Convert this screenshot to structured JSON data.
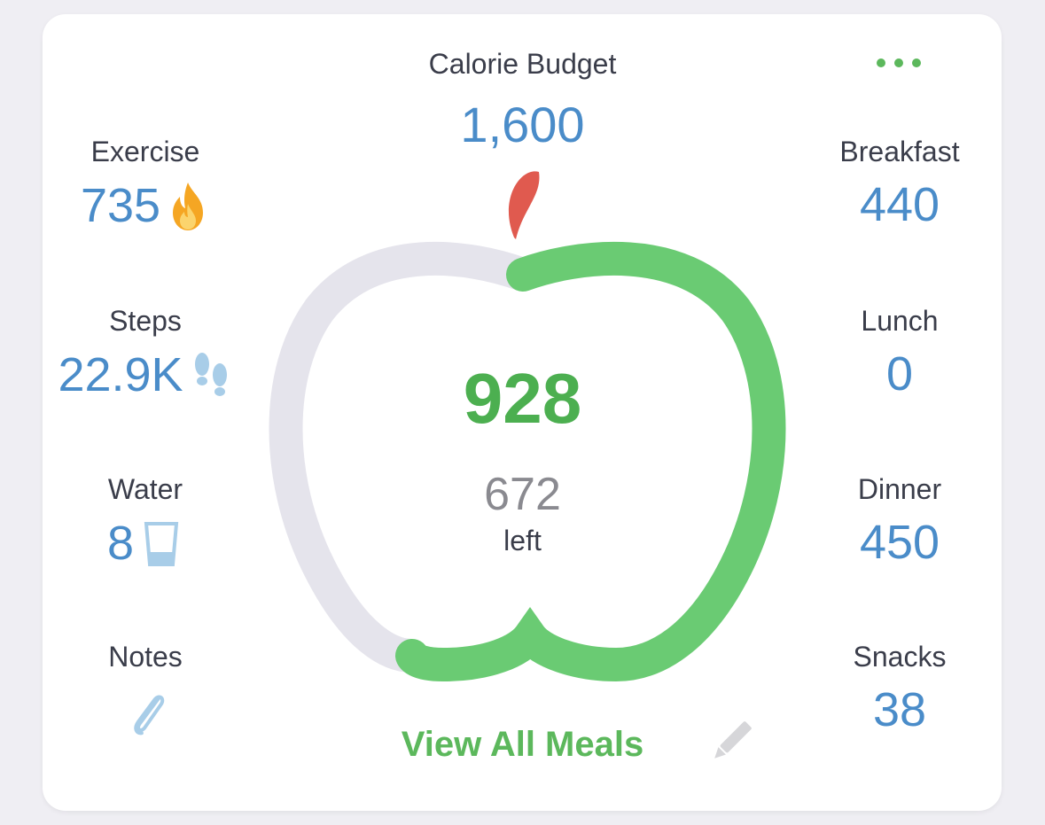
{
  "budget": {
    "label": "Calorie Budget",
    "value": "1,600"
  },
  "left_stats": {
    "exercise": {
      "label": "Exercise",
      "value": "735",
      "icon": "flame-icon"
    },
    "steps": {
      "label": "Steps",
      "value": "22.9K",
      "icon": "footsteps-icon"
    },
    "water": {
      "label": "Water",
      "value": "8",
      "icon": "glass-icon"
    },
    "notes": {
      "label": "Notes",
      "icon": "paperclip-icon"
    }
  },
  "right_stats": {
    "breakfast": {
      "label": "Breakfast",
      "value": "440"
    },
    "lunch": {
      "label": "Lunch",
      "value": "0"
    },
    "dinner": {
      "label": "Dinner",
      "value": "450"
    },
    "snacks": {
      "label": "Snacks",
      "value": "38"
    }
  },
  "center": {
    "consumed": "928",
    "remaining": "672",
    "remaining_label": "left"
  },
  "actions": {
    "view_meals": "View All Meals",
    "more_icon": "more-dots-icon",
    "edit_icon": "pencil-icon"
  },
  "progress": {
    "consumed_fraction": 0.58
  },
  "colors": {
    "accent_green": "#5cb85c",
    "value_blue": "#4a8cc9",
    "track_gray": "#e5e4ec",
    "stem_red": "#e05a4f"
  }
}
